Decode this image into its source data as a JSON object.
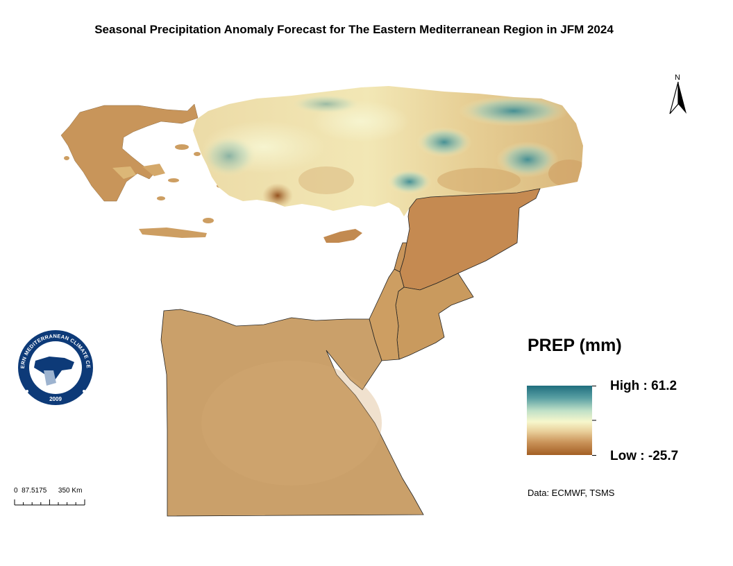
{
  "title": "Seasonal Precipitation Anomaly Forecast for The Eastern Mediterranean Region in JFM 2024",
  "north_arrow": {
    "letter": "N"
  },
  "legend": {
    "title": "PREP (mm)",
    "high_label": "High : 61.2",
    "low_label": "Low : -25.7",
    "high_value": 61.2,
    "low_value": -25.7,
    "colors": [
      "#1f6e7e",
      "#5aa0a3",
      "#bfe0c7",
      "#f7f7cc",
      "#e9cf9a",
      "#c99258",
      "#a35f24"
    ]
  },
  "source": "Data: ECMWF, TSMS",
  "scale_bar": {
    "labels": "0  87.5175      350 Km"
  },
  "logo": {
    "text_top": "EASTERN MEDITERRANEAN CLIMATE CENTRE",
    "year": "2009",
    "color": "#0d3a78"
  },
  "map_colors": {
    "dry": "#c99a5e",
    "dry_dark": "#a9652c",
    "neutral": "#f3efc2",
    "wet": "#3d8c94",
    "border": "#222222"
  }
}
